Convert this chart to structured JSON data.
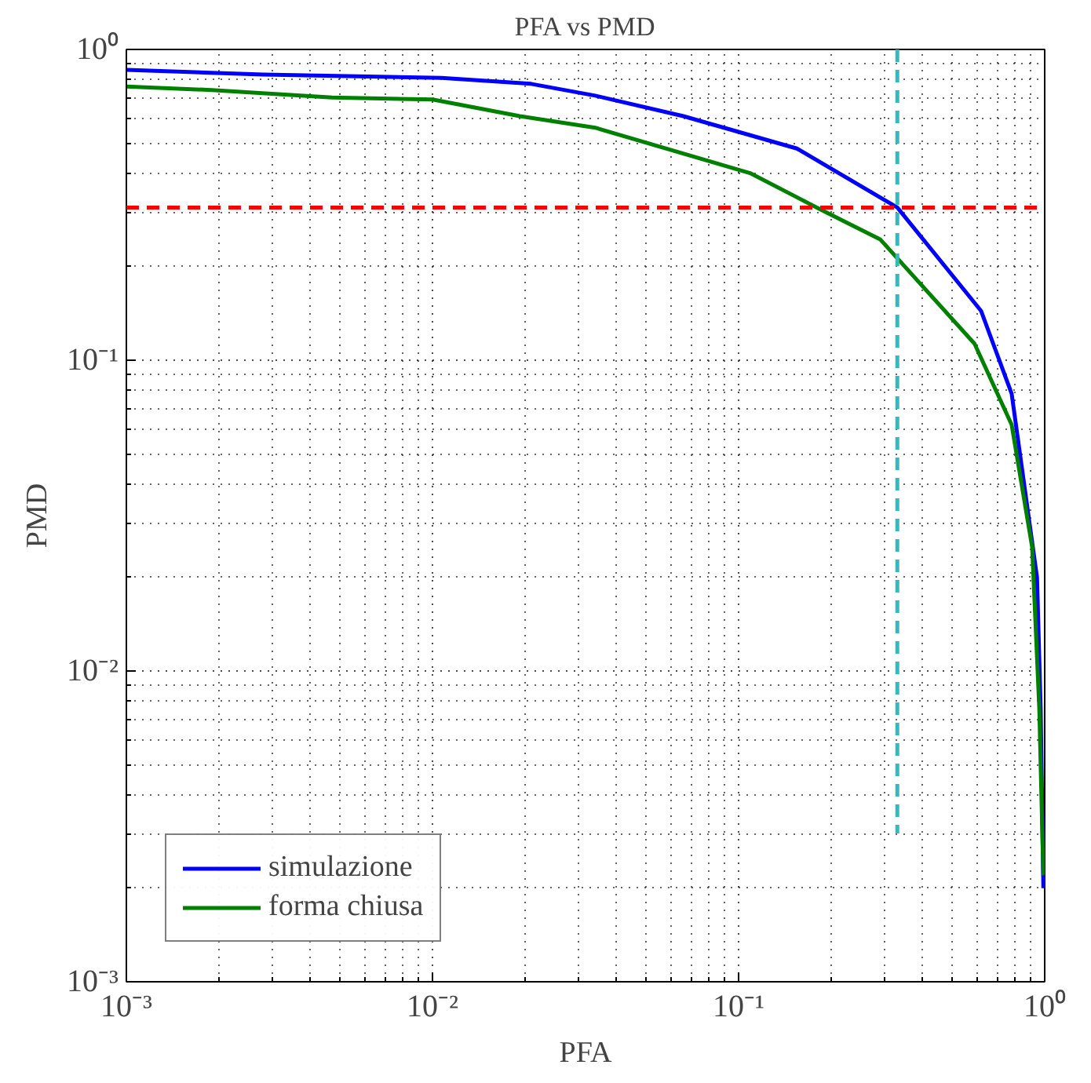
{
  "chart_data": {
    "type": "line",
    "title": "PFA vs PMD",
    "xlabel": "PFA",
    "ylabel": "PMD",
    "log": "xy",
    "grid": true,
    "legend": "bottom left",
    "line_style": "solid",
    "marker": "none",
    "xlim": [
      0.001,
      1
    ],
    "ylim": [
      0.001,
      1
    ],
    "xticks": [
      {
        "value": 0.001,
        "label": "10⁻³"
      },
      {
        "value": 0.01,
        "label": "10⁻²"
      },
      {
        "value": 0.1,
        "label": "10⁻¹"
      },
      {
        "value": 1,
        "label": "10⁰"
      }
    ],
    "yticks": [
      {
        "value": 0.001,
        "label": "10⁻³"
      },
      {
        "value": 0.01,
        "label": "10⁻²"
      },
      {
        "value": 0.1,
        "label": "10⁻¹"
      },
      {
        "value": 1,
        "label": "10⁰"
      }
    ],
    "series": [
      {
        "name": "simulazione",
        "color": "#0000ff",
        "x": [
          0.001,
          0.0028,
          0.0107,
          0.021,
          0.034,
          0.066,
          0.155,
          0.33,
          0.62,
          0.78,
          0.944,
          0.97,
          0.99
        ],
        "values": [
          0.86,
          0.83,
          0.81,
          0.775,
          0.71,
          0.61,
          0.48,
          0.31,
          0.144,
          0.078,
          0.02,
          0.0076,
          0.002
        ]
      },
      {
        "name": "forma chiusa",
        "color": "#008000",
        "x": [
          0.001,
          0.0019,
          0.0047,
          0.01,
          0.0193,
          0.034,
          0.109,
          0.18,
          0.29,
          0.59,
          0.78,
          0.91,
          0.96,
          0.99
        ],
        "values": [
          0.76,
          0.74,
          0.7,
          0.69,
          0.61,
          0.56,
          0.4,
          0.31,
          0.245,
          0.113,
          0.062,
          0.025,
          0.0076,
          0.0022
        ]
      },
      {
        "color": "#33bbbb",
        "line_style": "dashed",
        "x": [
          0.33,
          0.33
        ],
        "values": [
          1,
          0.003
        ]
      }
    ],
    "ref_lines": [
      {
        "axis": "y",
        "value": 0.31,
        "color": "#ff0000",
        "line_style": "dashed"
      }
    ]
  }
}
